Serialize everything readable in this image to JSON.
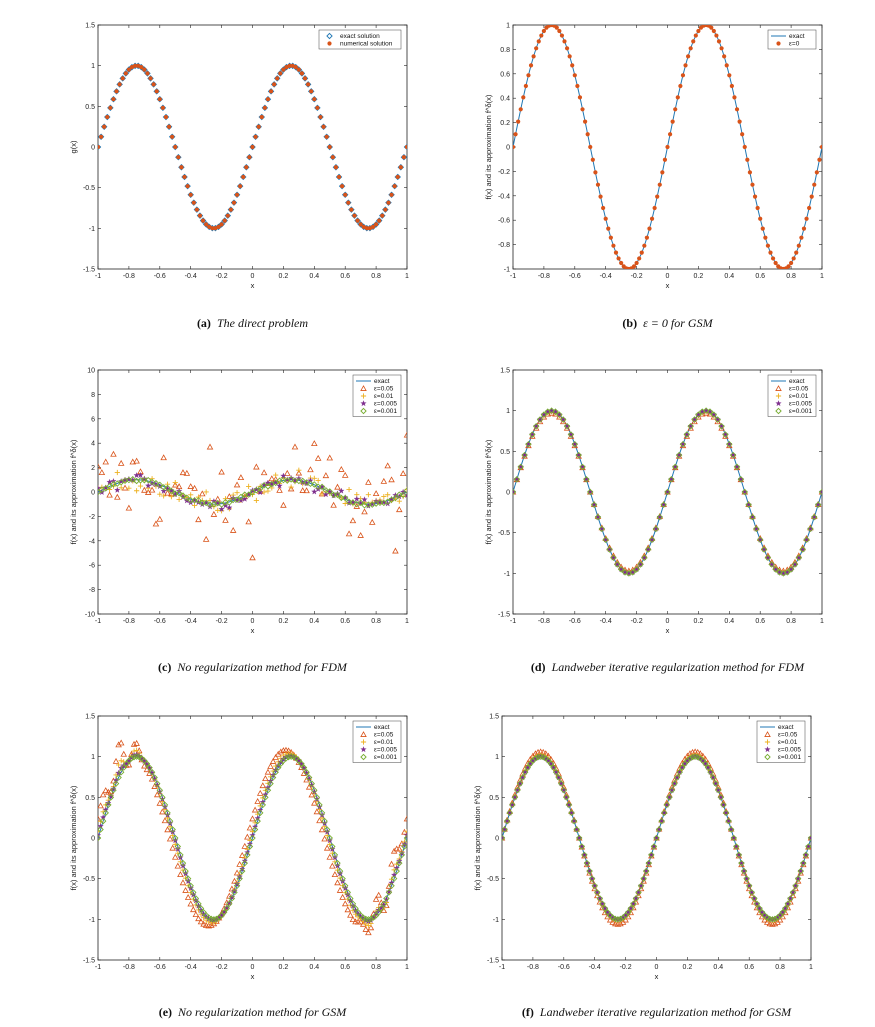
{
  "colors": {
    "exact_line": "#1f77b4",
    "eps_05": "#d95319",
    "eps_01": "#edb120",
    "eps_005": "#7e2f8e",
    "eps_001": "#77ac30",
    "axis": "#222222"
  },
  "chart_data": [
    {
      "id": "a",
      "type": "scatter",
      "caption_label": "(a)",
      "caption_text": "The direct problem",
      "xlabel": "x",
      "ylabel": "g(x)",
      "xlim": [
        -1,
        1
      ],
      "ylim": [
        -1.5,
        1.5
      ],
      "xticks": [
        -1,
        -0.8,
        -0.6,
        -0.4,
        -0.2,
        0,
        0.2,
        0.4,
        0.6,
        0.8,
        1
      ],
      "yticks": [
        -1.5,
        -1,
        -0.5,
        0,
        0.5,
        1,
        1.5
      ],
      "function": "sin(2*pi*x)",
      "legend_position": "top-right",
      "series": [
        {
          "name": "exact solution",
          "marker": "diamond-open",
          "color": "#1f77b4",
          "points": 101
        },
        {
          "name": "numerical solution",
          "marker": "dot",
          "color": "#d95319",
          "points": 101
        }
      ]
    },
    {
      "id": "b",
      "type": "line",
      "caption_label": "(b)",
      "caption_text": "ε = 0 for GSM",
      "xlabel": "x",
      "ylabel": "f(x) and its approximation f^δ(x)",
      "xlim": [
        -1,
        1
      ],
      "ylim": [
        -1,
        1
      ],
      "xticks": [
        -1,
        -0.8,
        -0.6,
        -0.4,
        -0.2,
        0,
        0.2,
        0.4,
        0.6,
        0.8,
        1
      ],
      "yticks": [
        -1,
        -0.8,
        -0.6,
        -0.4,
        -0.2,
        0,
        0.2,
        0.4,
        0.6,
        0.8,
        1
      ],
      "function": "sin(2*pi*x)",
      "legend_position": "top-right",
      "series": [
        {
          "name": "exact",
          "marker": "line",
          "color": "#1f77b4"
        },
        {
          "name": "ε=0",
          "marker": "dot",
          "color": "#d95319",
          "points": 121
        }
      ]
    },
    {
      "id": "c",
      "type": "scatter",
      "caption_label": "(c)",
      "caption_text": "No regularization method for FDM",
      "xlabel": "x",
      "ylabel": "f(x) and its approximation f^δ(x)",
      "xlim": [
        -1,
        1
      ],
      "ylim": [
        -10,
        10
      ],
      "xticks": [
        -1,
        -0.8,
        -0.6,
        -0.4,
        -0.2,
        0,
        0.2,
        0.4,
        0.6,
        0.8,
        1
      ],
      "yticks": [
        -10,
        -8,
        -6,
        -4,
        -2,
        0,
        2,
        4,
        6,
        8,
        10
      ],
      "function": "sin(2*pi*x)",
      "legend_position": "top-right",
      "series": [
        {
          "name": "exact",
          "marker": "line",
          "color": "#1f77b4"
        },
        {
          "name": "ε=0.05",
          "marker": "triangle",
          "color": "#d95319",
          "noise": 4.2,
          "points": 81
        },
        {
          "name": "ε=0.01",
          "marker": "plus",
          "color": "#edb120",
          "noise": 0.9,
          "points": 81
        },
        {
          "name": "ε=0.005",
          "marker": "star",
          "color": "#7e2f8e",
          "noise": 0.45,
          "points": 81
        },
        {
          "name": "ε=0.001",
          "marker": "diamond",
          "color": "#77ac30",
          "noise": 0.12,
          "points": 81
        }
      ]
    },
    {
      "id": "d",
      "type": "scatter",
      "caption_label": "(d)",
      "caption_text": "Landweber iterative regularization method for FDM",
      "xlabel": "x",
      "ylabel": "f(x) and its approximation f^δ(x)",
      "xlim": [
        -1,
        1
      ],
      "ylim": [
        -1.5,
        1.5
      ],
      "xticks": [
        -1,
        -0.8,
        -0.6,
        -0.4,
        -0.2,
        0,
        0.2,
        0.4,
        0.6,
        0.8,
        1
      ],
      "yticks": [
        -1.5,
        -1,
        -0.5,
        0,
        0.5,
        1,
        1.5
      ],
      "function": "sin(2*pi*x)",
      "legend_position": "top-right",
      "series": [
        {
          "name": "exact",
          "marker": "line",
          "color": "#1f77b4"
        },
        {
          "name": "ε=0.05",
          "marker": "triangle",
          "color": "#d95319",
          "scale": 0.97,
          "points": 81
        },
        {
          "name": "ε=0.01",
          "marker": "plus",
          "color": "#edb120",
          "scale": 0.99,
          "points": 81
        },
        {
          "name": "ε=0.005",
          "marker": "star",
          "color": "#7e2f8e",
          "scale": 1.0,
          "points": 81
        },
        {
          "name": "ε=0.001",
          "marker": "diamond",
          "color": "#77ac30",
          "scale": 1.0,
          "points": 81
        }
      ]
    },
    {
      "id": "e",
      "type": "scatter",
      "caption_label": "(e)",
      "caption_text": "No regularization method for GSM",
      "xlabel": "x",
      "ylabel": "f(x) and its approximation f^δ(x)",
      "xlim": [
        -1,
        1
      ],
      "ylim": [
        -1.5,
        1.5
      ],
      "xticks": [
        -1,
        -0.8,
        -0.6,
        -0.4,
        -0.2,
        0,
        0.2,
        0.4,
        0.6,
        0.8,
        1
      ],
      "yticks": [
        -1.5,
        -1,
        -0.5,
        0,
        0.5,
        1,
        1.5
      ],
      "function": "sin(2*pi*x)",
      "legend_position": "top-right",
      "series": [
        {
          "name": "exact",
          "marker": "line",
          "color": "#1f77b4"
        },
        {
          "name": "ε=0.05",
          "marker": "triangle",
          "color": "#d95319",
          "shift": 0.035,
          "amp": 1.08,
          "wiggle": 0.22,
          "points": 121
        },
        {
          "name": "ε=0.01",
          "marker": "plus",
          "color": "#edb120",
          "shift": 0.012,
          "amp": 1.04,
          "wiggle": 0.08,
          "points": 121
        },
        {
          "name": "ε=0.005",
          "marker": "star",
          "color": "#7e2f8e",
          "shift": 0.005,
          "amp": 1.01,
          "wiggle": 0.03,
          "points": 121
        },
        {
          "name": "ε=0.001",
          "marker": "diamond",
          "color": "#77ac30",
          "shift": 0.0,
          "amp": 1.0,
          "wiggle": 0.0,
          "points": 121
        }
      ]
    },
    {
      "id": "f",
      "type": "scatter",
      "caption_label": "(f)",
      "caption_text": "Landweber iterative regularization method for GSM",
      "xlabel": "x",
      "ylabel": "f(x) and its approximation f^δ(x)",
      "xlim": [
        -1,
        1
      ],
      "ylim": [
        -1.5,
        1.5
      ],
      "xticks": [
        -1,
        -0.8,
        -0.6,
        -0.4,
        -0.2,
        0,
        0.2,
        0.4,
        0.6,
        0.8,
        1
      ],
      "yticks": [
        -1.5,
        -1,
        -0.5,
        0,
        0.5,
        1,
        1.5
      ],
      "function": "sin(2*pi*x)",
      "legend_position": "top-right",
      "series": [
        {
          "name": "exact",
          "marker": "line",
          "color": "#1f77b4"
        },
        {
          "name": "ε=0.05",
          "marker": "triangle",
          "color": "#d95319",
          "amp": 1.06,
          "points": 121
        },
        {
          "name": "ε=0.01",
          "marker": "plus",
          "color": "#edb120",
          "amp": 1.02,
          "points": 121
        },
        {
          "name": "ε=0.005",
          "marker": "star",
          "color": "#7e2f8e",
          "amp": 1.0,
          "points": 121
        },
        {
          "name": "ε=0.001",
          "marker": "diamond",
          "color": "#77ac30",
          "amp": 1.0,
          "points": 121
        }
      ]
    }
  ]
}
